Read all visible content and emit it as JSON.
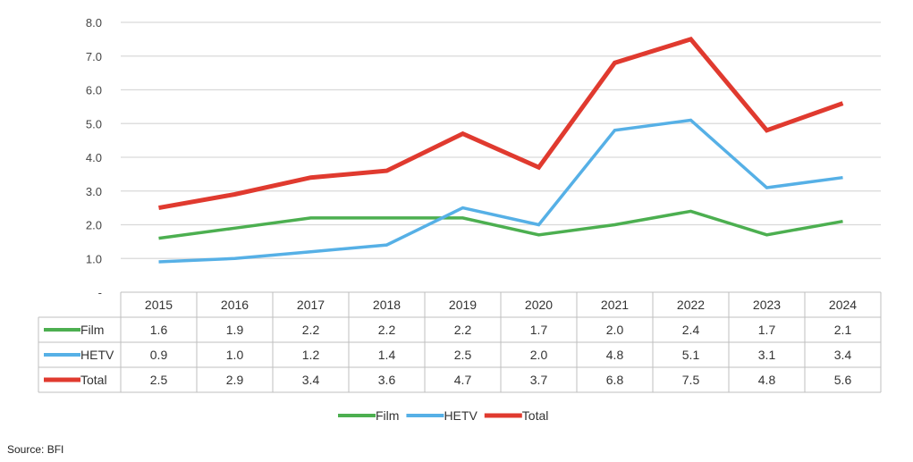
{
  "title": "",
  "source": "Source: BFI",
  "chart_data": {
    "type": "line",
    "categories": [
      "2015",
      "2016",
      "2017",
      "2018",
      "2019",
      "2020",
      "2021",
      "2022",
      "2023",
      "2024"
    ],
    "series": [
      {
        "name": "Film",
        "color": "#4caf50",
        "values": [
          1.6,
          1.9,
          2.2,
          2.2,
          2.2,
          1.7,
          2.0,
          2.4,
          1.7,
          2.1
        ]
      },
      {
        "name": "HETV",
        "color": "#56b0e6",
        "values": [
          0.9,
          1.0,
          1.2,
          1.4,
          2.5,
          2.0,
          4.8,
          5.1,
          3.1,
          3.4
        ]
      },
      {
        "name": "Total",
        "color": "#e03a2f",
        "values": [
          2.5,
          2.9,
          3.4,
          3.6,
          4.7,
          3.7,
          6.8,
          7.5,
          4.8,
          5.6
        ]
      }
    ],
    "yticks": [
      "-",
      "1.0",
      "2.0",
      "3.0",
      "4.0",
      "5.0",
      "6.0",
      "7.0",
      "8.0"
    ],
    "ylim": [
      0,
      8
    ],
    "grid": true,
    "legend": "bottom",
    "data_table": true
  }
}
